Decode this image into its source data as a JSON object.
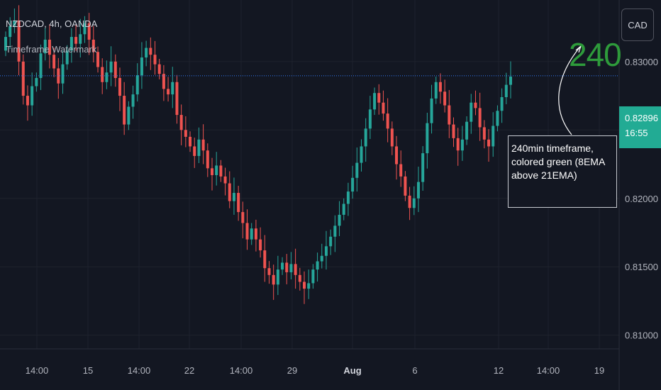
{
  "header": {
    "symbol": "NZDCAD, 4h, OANDA",
    "indicator": "Timeframe Watermark"
  },
  "currency_button": "CAD",
  "price_label": {
    "price": "0.82896",
    "countdown": "16:55"
  },
  "watermark": "240",
  "annotation": {
    "lines": [
      "240min timeframe,",
      "colored green (8EMA",
      "above 21EMA)"
    ]
  },
  "colors": {
    "background": "#131722",
    "up": "#26a69a",
    "down": "#ef5350",
    "grid": "#1e222d",
    "axis_text": "#b2b5be",
    "price_line": "#3179f5",
    "watermark": "#2e9b3b",
    "price_tag": "#22ab94"
  },
  "chart_data": {
    "type": "candlestick",
    "symbol": "NZDCAD",
    "interval": "4h",
    "y_ticks": [
      0.81,
      0.815,
      0.82,
      0.825,
      0.83
    ],
    "y_tick_labels": [
      "0.81000",
      "0.81500",
      "0.82000",
      "0.82500",
      "0.83000"
    ],
    "ylim": [
      0.809,
      0.8345
    ],
    "x_tick_labels": [
      "14:00",
      "15",
      "14:00",
      "22",
      "14:00",
      "29",
      "Aug",
      "6",
      "12",
      "14:00",
      "19"
    ],
    "last_price": 0.82896,
    "grid": true,
    "series": [
      {
        "name": "close",
        "values": [
          0.8318,
          0.8326,
          0.833,
          0.83,
          0.8275,
          0.8268,
          0.8282,
          0.8288,
          0.8306,
          0.8316,
          0.8305,
          0.8295,
          0.8284,
          0.8298,
          0.8308,
          0.8318,
          0.8313,
          0.832,
          0.8328,
          0.8316,
          0.8307,
          0.8296,
          0.8285,
          0.8292,
          0.83,
          0.8288,
          0.8275,
          0.8254,
          0.8267,
          0.8276,
          0.829,
          0.8303,
          0.831,
          0.8305,
          0.8298,
          0.8291,
          0.828,
          0.8276,
          0.8285,
          0.8261,
          0.825,
          0.8245,
          0.8238,
          0.8231,
          0.8243,
          0.8235,
          0.8222,
          0.8217,
          0.8224,
          0.8216,
          0.8211,
          0.8198,
          0.8204,
          0.819,
          0.8182,
          0.817,
          0.8178,
          0.817,
          0.8162,
          0.8149,
          0.8144,
          0.8137,
          0.8148,
          0.8153,
          0.8146,
          0.8152,
          0.8144,
          0.8139,
          0.8134,
          0.8138,
          0.8148,
          0.8154,
          0.8158,
          0.8165,
          0.8172,
          0.818,
          0.8188,
          0.8196,
          0.8205,
          0.8215,
          0.8226,
          0.8238,
          0.8251,
          0.8265,
          0.8277,
          0.827,
          0.8262,
          0.8251,
          0.8238,
          0.8225,
          0.8216,
          0.8202,
          0.8193,
          0.82,
          0.8212,
          0.8233,
          0.8255,
          0.8273,
          0.8285,
          0.8278,
          0.8268,
          0.8254,
          0.8244,
          0.8235,
          0.8243,
          0.8256,
          0.827,
          0.8266,
          0.8252,
          0.8243,
          0.8238,
          0.8253,
          0.8264,
          0.8274,
          0.8283,
          0.8289
        ]
      }
    ]
  }
}
